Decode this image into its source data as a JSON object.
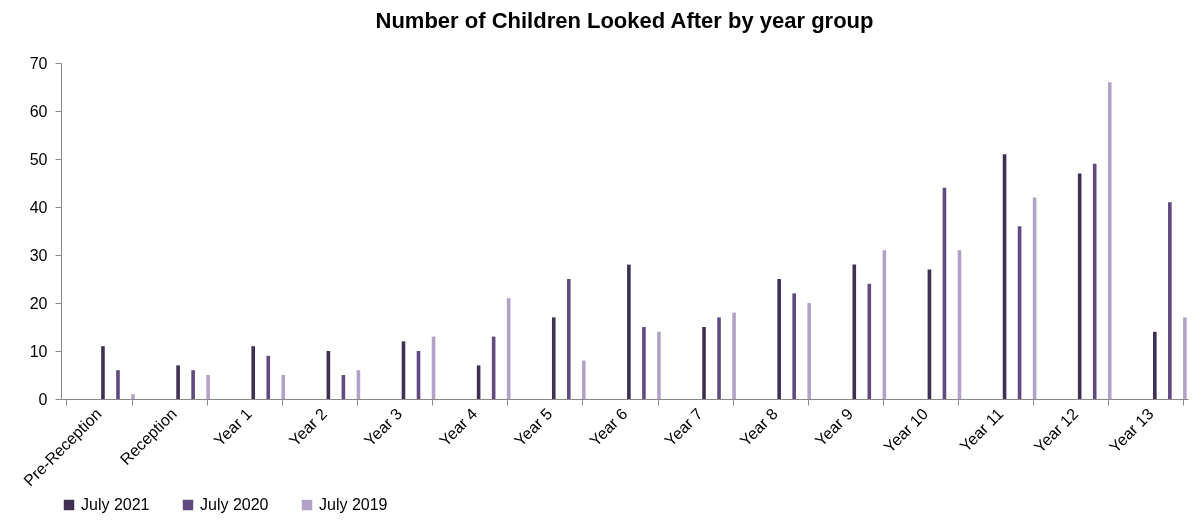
{
  "chart_data": {
    "type": "bar",
    "title": "Number of Children Looked After by year group",
    "categories": [
      "Pre-Reception",
      "Reception",
      "Year 1",
      "Year 2",
      "Year 3",
      "Year 4",
      "Year 5",
      "Year 6",
      "Year 7",
      "Year 8",
      "Year 9",
      "Year 10",
      "Year 11",
      "Year 12",
      "Year 13"
    ],
    "series": [
      {
        "name": "July 2021",
        "color": "#3e3050",
        "values": [
          11,
          7,
          11,
          10,
          12,
          7,
          17,
          28,
          15,
          25,
          28,
          27,
          51,
          47,
          14
        ]
      },
      {
        "name": "July 2020",
        "color": "#604a7f",
        "values": [
          6,
          6,
          9,
          5,
          10,
          13,
          25,
          15,
          17,
          22,
          24,
          44,
          36,
          49,
          41
        ]
      },
      {
        "name": "July 2019",
        "color": "#b2a2c8",
        "values": [
          1,
          5,
          5,
          6,
          13,
          21,
          8,
          14,
          18,
          20,
          31,
          31,
          42,
          66,
          17
        ]
      }
    ],
    "ylim": [
      0,
      70
    ],
    "yticks": [
      0,
      10,
      20,
      30,
      40,
      50,
      60,
      70
    ],
    "grid": false,
    "legend": "bottom"
  }
}
